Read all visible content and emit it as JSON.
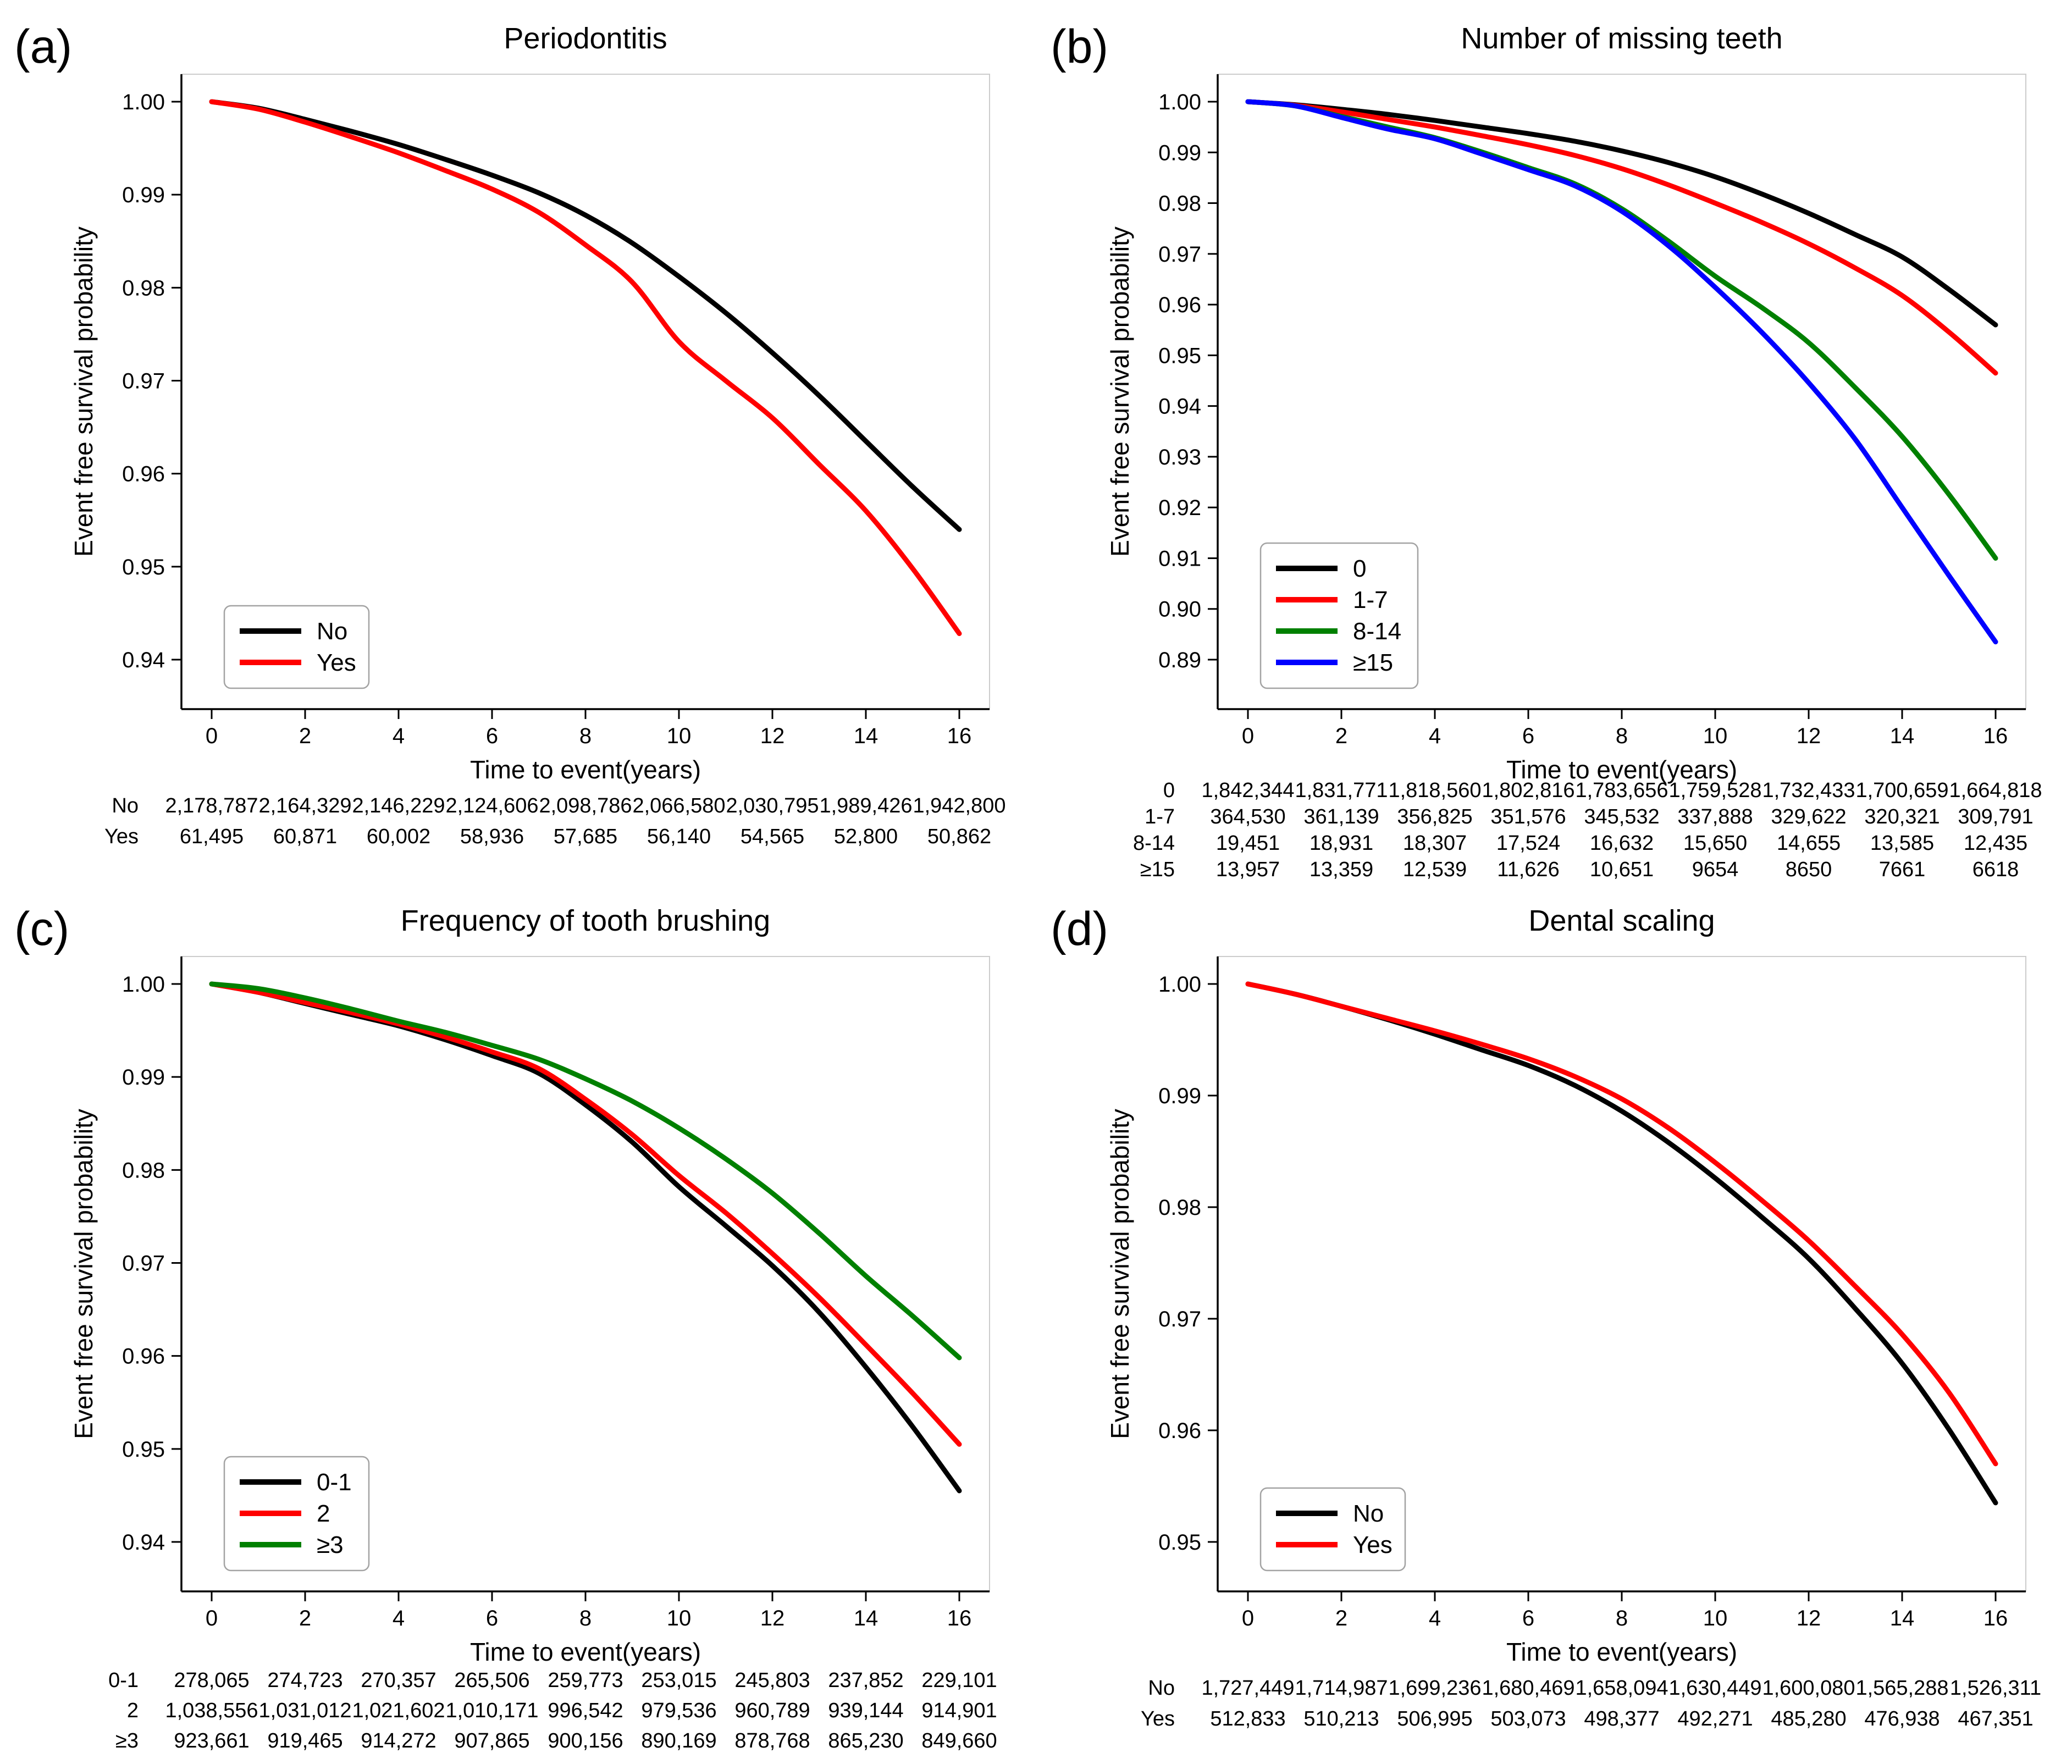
{
  "figure": {
    "background": "#ffffff",
    "x_axis_label": "Time to event(years)",
    "y_axis_label": "Event free survival probability",
    "x_tick_labels": [
      "0",
      "2",
      "4",
      "6",
      "8",
      "10",
      "12",
      "14",
      "16"
    ],
    "frame_color": "#cccccc",
    "spine_color": "#000000",
    "legend_border_color": "#a3a3a3"
  },
  "chart_data": [
    {
      "panel_label": "(a)",
      "type": "line",
      "title": "Periodontitis",
      "xlabel": "Time to event(years)",
      "ylabel": "Event free survival probability",
      "x": [
        0,
        1,
        2,
        3,
        4,
        5,
        6,
        7,
        8,
        9,
        10,
        11,
        12,
        13,
        14,
        15,
        16
      ],
      "xlim": [
        0,
        16
      ],
      "ylim": [
        0.94,
        1.0
      ],
      "ytick_step": 0.01,
      "y_tick_labels": [
        "1.00",
        "0.99",
        "0.98",
        "0.97",
        "0.96",
        "0.95",
        "0.94"
      ],
      "grid": false,
      "legend_position": "lower left",
      "series": [
        {
          "name": "No",
          "color": "#000000",
          "values": [
            1.0,
            0.9993,
            0.9981,
            0.9968,
            0.9954,
            0.9938,
            0.9921,
            0.9902,
            0.9878,
            0.9848,
            0.9812,
            0.9773,
            0.973,
            0.9684,
            0.9635,
            0.9586,
            0.954
          ]
        },
        {
          "name": "Yes",
          "color": "#ff0000",
          "values": [
            1.0,
            0.9992,
            0.9978,
            0.9962,
            0.9945,
            0.9926,
            0.9906,
            0.9881,
            0.9846,
            0.9806,
            0.9742,
            0.97,
            0.966,
            0.961,
            0.956,
            0.9498,
            0.9428
          ]
        }
      ],
      "risk_table": {
        "rows": [
          {
            "label": "No",
            "values": [
              "2,178,787",
              "2,164,329",
              "2,146,229",
              "2,124,606",
              "2,098,786",
              "2,066,580",
              "2,030,795",
              "1,989,426",
              "1,942,800"
            ]
          },
          {
            "label": "Yes",
            "values": [
              "61,495",
              "60,871",
              "60,002",
              "58,936",
              "57,685",
              "56,140",
              "54,565",
              "52,800",
              "50,862"
            ]
          }
        ]
      }
    },
    {
      "panel_label": "(b)",
      "type": "line",
      "title": "Number of missing teeth",
      "xlabel": "Time to event(years)",
      "ylabel": "Event free survival probability",
      "x": [
        0,
        1,
        2,
        3,
        4,
        5,
        6,
        7,
        8,
        9,
        10,
        11,
        12,
        13,
        14,
        15,
        16
      ],
      "xlim": [
        0,
        16
      ],
      "ylim": [
        0.89,
        1.0
      ],
      "ytick_step": 0.01,
      "y_tick_labels": [
        "1.00",
        "0.99",
        "0.98",
        "0.97",
        "0.96",
        "0.95",
        "0.94",
        "0.93",
        "0.92",
        "0.91",
        "0.90",
        "0.89"
      ],
      "grid": false,
      "legend_position": "lower left",
      "series": [
        {
          "name": "0",
          "color": "#000000",
          "values": [
            1.0,
            0.9994,
            0.9985,
            0.9975,
            0.9963,
            0.995,
            0.9937,
            0.9922,
            0.9903,
            0.988,
            0.9852,
            0.9818,
            0.978,
            0.9738,
            0.9694,
            0.963,
            0.956
          ]
        },
        {
          "name": "1-7",
          "color": "#ff0000",
          "values": [
            1.0,
            0.9993,
            0.998,
            0.9965,
            0.995,
            0.9933,
            0.9915,
            0.9894,
            0.9868,
            0.9836,
            0.98,
            0.9762,
            0.972,
            0.9672,
            0.9618,
            0.9546,
            0.9465
          ]
        },
        {
          "name": "8-14",
          "color": "#008000",
          "values": [
            1.0,
            0.9992,
            0.9971,
            0.995,
            0.9929,
            0.9901,
            0.987,
            0.9838,
            0.9789,
            0.9725,
            0.9656,
            0.9594,
            0.9525,
            0.9436,
            0.934,
            0.9226,
            0.91
          ]
        },
        {
          "name": "≥15",
          "color": "#0000ff",
          "values": [
            1.0,
            0.9992,
            0.9969,
            0.9946,
            0.9927,
            0.9897,
            0.9866,
            0.9834,
            0.9784,
            0.9716,
            0.9634,
            0.9545,
            0.9446,
            0.9334,
            0.92,
            0.9066,
            0.8935
          ]
        }
      ],
      "risk_table": {
        "rows": [
          {
            "label": "0",
            "values": [
              "1,842,344",
              "1,831,771",
              "1,818,560",
              "1,802,816",
              "1,783,656",
              "1,759,528",
              "1,732,433",
              "1,700,659",
              "1,664,818"
            ]
          },
          {
            "label": "1-7",
            "values": [
              "364,530",
              "361,139",
              "356,825",
              "351,576",
              "345,532",
              "337,888",
              "329,622",
              "320,321",
              "309,791"
            ]
          },
          {
            "label": "8-14",
            "values": [
              "19,451",
              "18,931",
              "18,307",
              "17,524",
              "16,632",
              "15,650",
              "14,655",
              "13,585",
              "12,435"
            ]
          },
          {
            "label": "≥15",
            "values": [
              "13,957",
              "13,359",
              "12,539",
              "11,626",
              "10,651",
              "9654",
              "8650",
              "7661",
              "6618"
            ]
          }
        ]
      }
    },
    {
      "panel_label": "(c)",
      "type": "line",
      "title": "Frequency of tooth brushing",
      "xlabel": "Time to event(years)",
      "ylabel": "Event free survival probability",
      "x": [
        0,
        1,
        2,
        3,
        4,
        5,
        6,
        7,
        8,
        9,
        10,
        11,
        12,
        13,
        14,
        15,
        16
      ],
      "xlim": [
        0,
        16
      ],
      "ylim": [
        0.94,
        1.0
      ],
      "ytick_step": 0.01,
      "y_tick_labels": [
        "1.00",
        "0.99",
        "0.98",
        "0.97",
        "0.96",
        "0.95",
        "0.94"
      ],
      "grid": false,
      "legend_position": "lower left",
      "series": [
        {
          "name": "0-1",
          "color": "#000000",
          "values": [
            1.0,
            0.9991,
            0.9979,
            0.9967,
            0.9955,
            0.994,
            0.9923,
            0.9904,
            0.987,
            0.983,
            0.9782,
            0.974,
            0.9697,
            0.9647,
            0.9588,
            0.9524,
            0.9455
          ]
        },
        {
          "name": "2",
          "color": "#ff0000",
          "values": [
            1.0,
            0.9991,
            0.998,
            0.9969,
            0.9957,
            0.9943,
            0.9927,
            0.9909,
            0.9876,
            0.9838,
            0.9794,
            0.9754,
            0.971,
            0.9663,
            0.9612,
            0.956,
            0.9505
          ]
        },
        {
          "name": "≥3",
          "color": "#008000",
          "values": [
            1.0,
            0.9995,
            0.9985,
            0.9973,
            0.996,
            0.9948,
            0.9934,
            0.9919,
            0.9898,
            0.9874,
            0.9845,
            0.9812,
            0.9775,
            0.9732,
            0.9686,
            0.9643,
            0.9598
          ]
        }
      ],
      "risk_table": {
        "rows": [
          {
            "label": "0-1",
            "values": [
              "278,065",
              "274,723",
              "270,357",
              "265,506",
              "259,773",
              "253,015",
              "245,803",
              "237,852",
              "229,101"
            ]
          },
          {
            "label": "2",
            "values": [
              "1,038,556",
              "1,031,012",
              "1,021,602",
              "1,010,171",
              "996,542",
              "979,536",
              "960,789",
              "939,144",
              "914,901"
            ]
          },
          {
            "label": "≥3",
            "values": [
              "923,661",
              "919,465",
              "914,272",
              "907,865",
              "900,156",
              "890,169",
              "878,768",
              "865,230",
              "849,660"
            ]
          }
        ]
      }
    },
    {
      "panel_label": "(d)",
      "type": "line",
      "title": "Dental scaling",
      "xlabel": "Time to event(years)",
      "ylabel": "Event free survival probability",
      "x": [
        0,
        1,
        2,
        3,
        4,
        5,
        6,
        7,
        8,
        9,
        10,
        11,
        12,
        13,
        14,
        15,
        16
      ],
      "xlim": [
        0,
        16
      ],
      "ylim": [
        0.95,
        1.0
      ],
      "ytick_step": 0.01,
      "y_tick_labels": [
        "1.00",
        "0.99",
        "0.98",
        "0.97",
        "0.96",
        "0.95"
      ],
      "grid": false,
      "legend_position": "lower left",
      "series": [
        {
          "name": "No",
          "color": "#000000",
          "values": [
            1.0,
            0.9991,
            0.998,
            0.9968,
            0.9955,
            0.9941,
            0.9927,
            0.9909,
            0.9886,
            0.9858,
            0.9826,
            0.9791,
            0.9754,
            0.9709,
            0.966,
            0.9601,
            0.9535
          ]
        },
        {
          "name": "Yes",
          "color": "#ff0000",
          "values": [
            1.0,
            0.9991,
            0.998,
            0.9969,
            0.9958,
            0.9946,
            0.9933,
            0.9917,
            0.9897,
            0.9871,
            0.984,
            0.9806,
            0.977,
            0.9729,
            0.9686,
            0.9634,
            0.957
          ]
        }
      ],
      "risk_table": {
        "rows": [
          {
            "label": "No",
            "values": [
              "1,727,449",
              "1,714,987",
              "1,699,236",
              "1,680,469",
              "1,658,094",
              "1,630,449",
              "1,600,080",
              "1,565,288",
              "1,526,311"
            ]
          },
          {
            "label": "Yes",
            "values": [
              "512,833",
              "510,213",
              "506,995",
              "503,073",
              "498,377",
              "492,271",
              "485,280",
              "476,938",
              "467,351"
            ]
          }
        ]
      }
    }
  ]
}
